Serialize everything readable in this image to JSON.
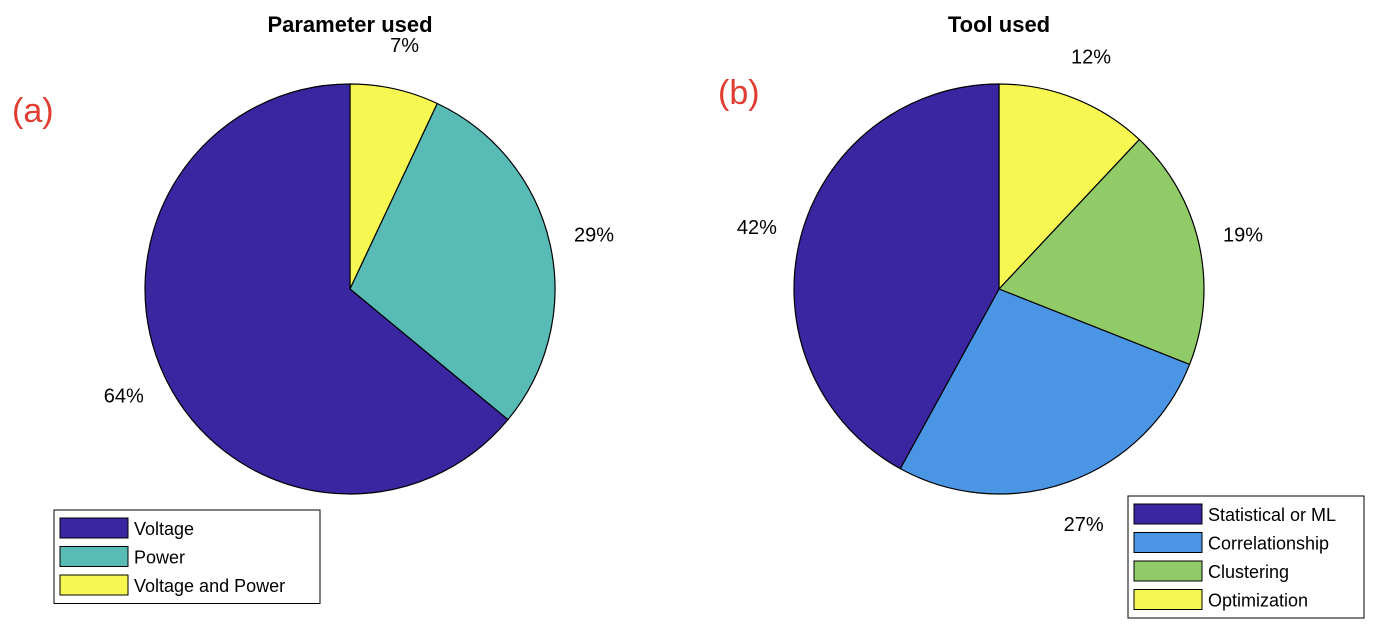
{
  "chart_data": [
    {
      "type": "pie",
      "panel_label": "(a)",
      "title": "Parameter used",
      "slices": [
        {
          "name": "Voltage",
          "value": 64,
          "label": "64%",
          "color": "#3A26A1"
        },
        {
          "name": "Power",
          "value": 29,
          "label": "29%",
          "color": "#59BBB6"
        },
        {
          "name": "Voltage and Power",
          "value": 7,
          "label": "7%",
          "color": "#F7F752"
        }
      ],
      "legend_placement": "bottom-left"
    },
    {
      "type": "pie",
      "panel_label": "(b)",
      "title": "Tool used",
      "slices": [
        {
          "name": "Statistical or ML",
          "value": 42,
          "label": "42%",
          "color": "#3A26A1"
        },
        {
          "name": "Correlationship",
          "value": 27,
          "label": "27%",
          "color": "#4A95E4"
        },
        {
          "name": "Clustering",
          "value": 19,
          "label": "19%",
          "color": "#91CB67"
        },
        {
          "name": "Optimization",
          "value": 12,
          "label": "12%",
          "color": "#F7F752"
        }
      ],
      "legend_placement": "bottom-right"
    }
  ],
  "colors": {
    "panel_label": "#E03C31",
    "edge": "#000000"
  }
}
